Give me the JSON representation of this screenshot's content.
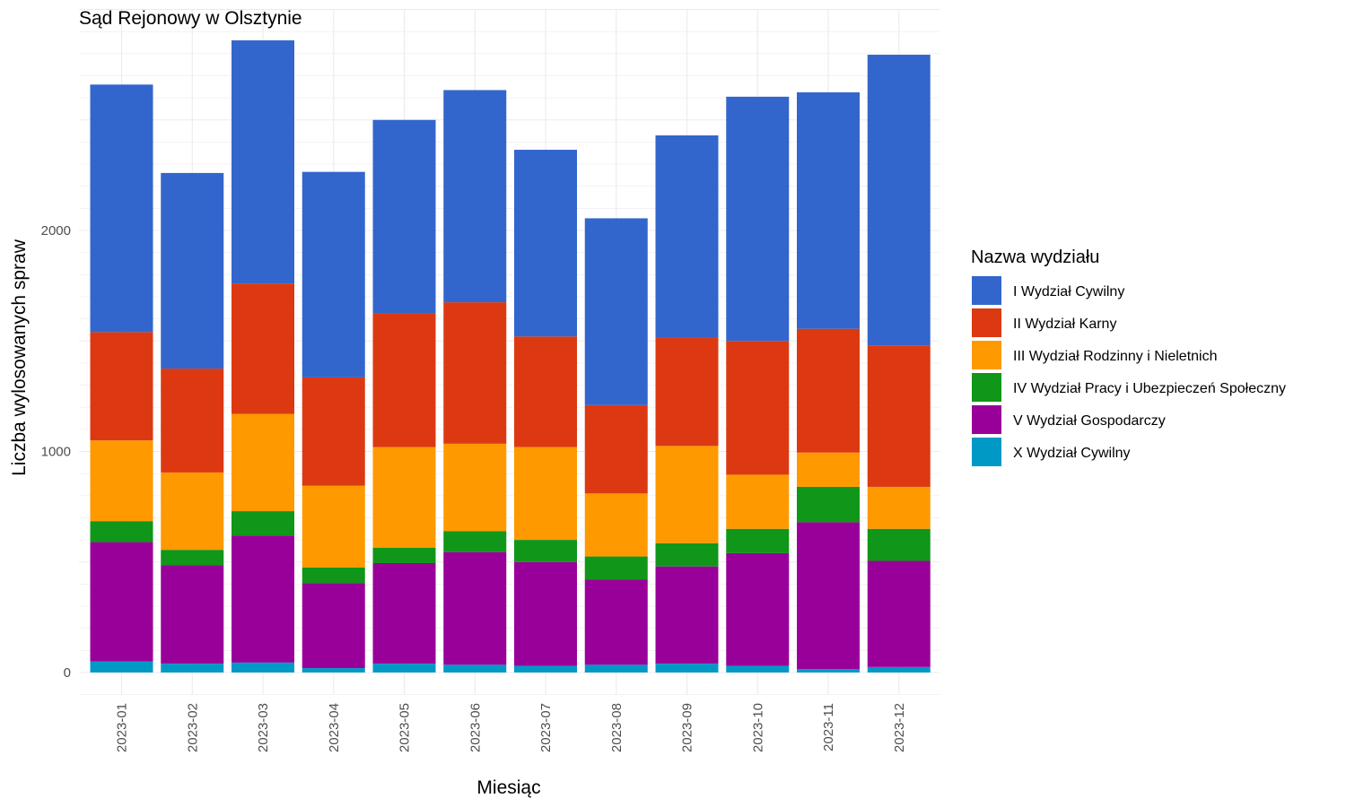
{
  "chart_data": {
    "type": "bar",
    "stacked": true,
    "title": "Sąd Rejonowy w Olsztynie",
    "xlabel": "Miesiąc",
    "ylabel": "Liczba wylosowanych spraw",
    "ylim": [
      0,
      2900
    ],
    "yticks": [
      0,
      1000,
      2000
    ],
    "grid": true,
    "legend_position": "right",
    "legend_title": "Nazwa wydziału",
    "categories": [
      "2023-01",
      "2023-02",
      "2023-03",
      "2023-04",
      "2023-05",
      "2023-06",
      "2023-07",
      "2023-08",
      "2023-09",
      "2023-10",
      "2023-11",
      "2023-12"
    ],
    "series": [
      {
        "name": "X Wydział Cywilny",
        "color": "#0099C6",
        "values": [
          50,
          40,
          45,
          20,
          40,
          35,
          30,
          35,
          40,
          30,
          15,
          25
        ]
      },
      {
        "name": "V Wydział Gospodarczy",
        "color": "#990099",
        "values": [
          540,
          445,
          575,
          385,
          455,
          510,
          470,
          385,
          440,
          510,
          665,
          480
        ]
      },
      {
        "name": "IV Wydział Pracy i Ubezpieczeń Społeczny",
        "color": "#109618",
        "values": [
          95,
          70,
          110,
          70,
          70,
          95,
          100,
          105,
          105,
          110,
          160,
          145
        ]
      },
      {
        "name": "III Wydział Rodzinny i Nieletnich",
        "color": "#FF9900",
        "values": [
          365,
          350,
          440,
          370,
          455,
          395,
          420,
          285,
          440,
          245,
          155,
          190
        ]
      },
      {
        "name": "II Wydział Karny",
        "color": "#DC3912",
        "values": [
          490,
          470,
          590,
          490,
          605,
          640,
          500,
          400,
          490,
          605,
          560,
          640
        ]
      },
      {
        "name": "I Wydział Cywilny",
        "color": "#3366CC",
        "values": [
          1120,
          885,
          1100,
          930,
          875,
          960,
          845,
          845,
          915,
          1105,
          1070,
          1315
        ]
      }
    ],
    "legend_order": [
      "I Wydział Cywilny",
      "II Wydział Karny",
      "III Wydział Rodzinny i Nieletnich",
      "IV Wydział Pracy i Ubezpieczeń Społeczny",
      "V Wydział Gospodarczy",
      "X Wydział Cywilny"
    ]
  }
}
